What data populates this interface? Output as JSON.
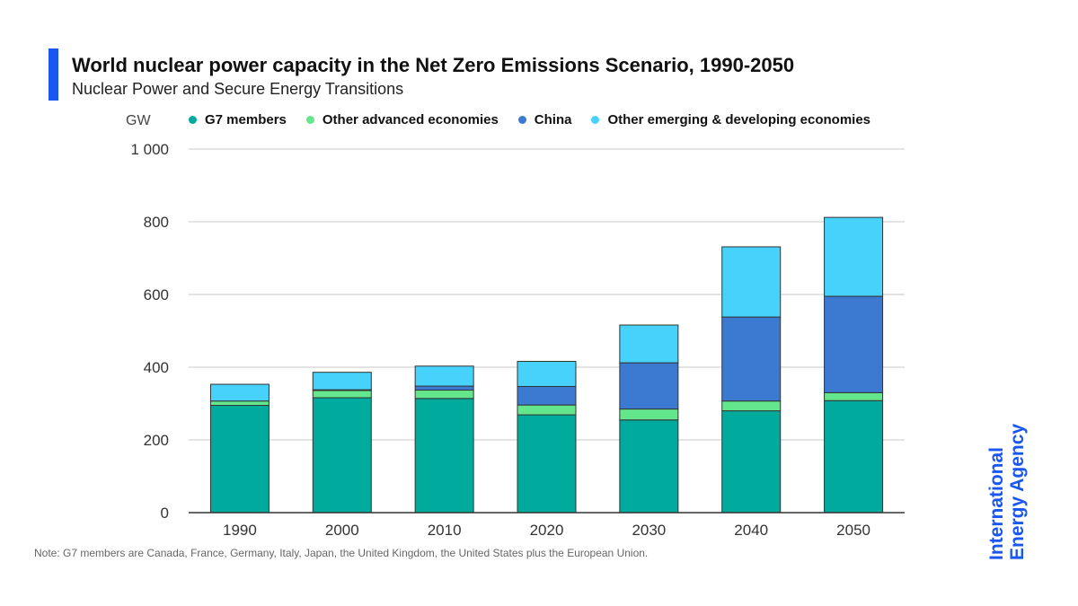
{
  "header": {
    "title": "World nuclear power capacity in the Net Zero Emissions Scenario, 1990-2050",
    "subtitle": "Nuclear Power and Secure Energy Transitions"
  },
  "footer": {
    "note": "Note: G7 members are Canada, France, Germany, Italy, Japan, the United Kingdom, the United States plus the European Union."
  },
  "logo": {
    "line1": "International",
    "line2": "Energy Agency",
    "color": "#1a56f0"
  },
  "colors": {
    "accent": "#1a56f0",
    "g7": "#00ab9e",
    "other_advanced": "#64e68c",
    "china": "#3c7ad2",
    "other_emerging": "#46d2fa"
  },
  "chart_data": {
    "type": "bar",
    "stacked": true,
    "title": "World nuclear power capacity in the Net Zero Emissions Scenario, 1990-2050",
    "subtitle": "Nuclear Power and Secure Energy Transitions",
    "ylabel": "GW",
    "xlabel": "",
    "ylim": [
      0,
      1000
    ],
    "yticks": [
      0,
      200,
      400,
      600,
      800,
      1000
    ],
    "ytick_labels": [
      "0",
      "200",
      "400",
      "600",
      "800",
      "1 000"
    ],
    "grid": true,
    "legend": "top",
    "categories": [
      "1990",
      "2000",
      "2010",
      "2020",
      "2030",
      "2040",
      "2050"
    ],
    "series": [
      {
        "name": "G7 members",
        "color": "#00ab9e",
        "values": [
          295,
          316,
          314,
          269,
          255,
          280,
          308
        ]
      },
      {
        "name": "Other advanced economies",
        "color": "#64e68c",
        "values": [
          12,
          20,
          23,
          27,
          30,
          27,
          22
        ]
      },
      {
        "name": "China",
        "color": "#3c7ad2",
        "values": [
          0,
          2,
          11,
          51,
          127,
          231,
          265
        ]
      },
      {
        "name": "Other emerging & developing economies",
        "color": "#46d2fa",
        "values": [
          46,
          48,
          55,
          69,
          104,
          193,
          217
        ]
      }
    ]
  }
}
